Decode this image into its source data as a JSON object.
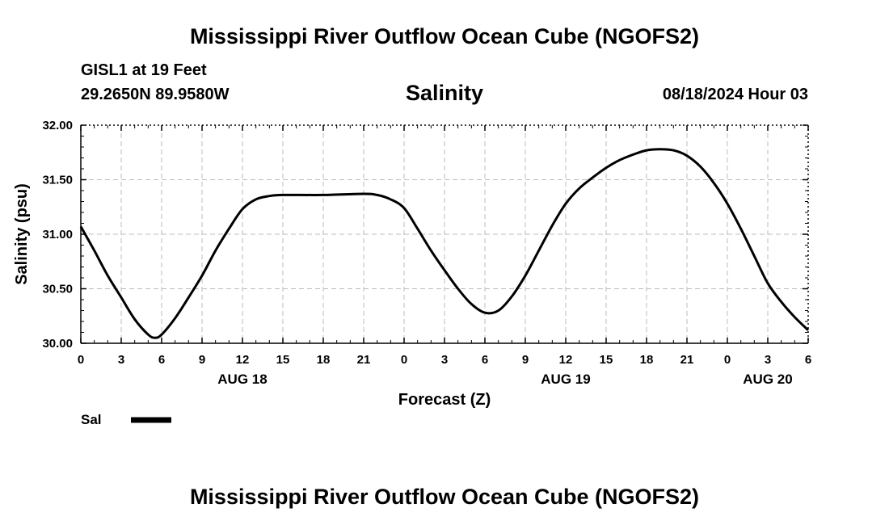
{
  "header": {
    "title": "Mississippi River Outflow Ocean Cube (NGOFS2)",
    "station": "GISL1 at 19 Feet",
    "coords": "29.2650N  89.9580W",
    "variable": "Salinity",
    "datetime": "08/18/2024 Hour 03"
  },
  "footer": {
    "title": "Mississippi River Outflow Ocean Cube (NGOFS2)"
  },
  "chart_data": {
    "type": "line",
    "title": "Salinity",
    "xlabel": "Forecast (Z)",
    "ylabel": "Salinity (psu)",
    "ylim": [
      30.0,
      32.0
    ],
    "yticks": [
      "30.00",
      "30.50",
      "31.00",
      "31.50",
      "32.00"
    ],
    "xlim": [
      0,
      54
    ],
    "xticks": [
      {
        "h": 0,
        "label": "0"
      },
      {
        "h": 3,
        "label": "3"
      },
      {
        "h": 6,
        "label": "6"
      },
      {
        "h": 9,
        "label": "9"
      },
      {
        "h": 12,
        "label": "12"
      },
      {
        "h": 15,
        "label": "15"
      },
      {
        "h": 18,
        "label": "18"
      },
      {
        "h": 21,
        "label": "21"
      },
      {
        "h": 24,
        "label": "0"
      },
      {
        "h": 27,
        "label": "3"
      },
      {
        "h": 30,
        "label": "6"
      },
      {
        "h": 33,
        "label": "9"
      },
      {
        "h": 36,
        "label": "12"
      },
      {
        "h": 39,
        "label": "15"
      },
      {
        "h": 42,
        "label": "18"
      },
      {
        "h": 45,
        "label": "21"
      },
      {
        "h": 48,
        "label": "0"
      },
      {
        "h": 51,
        "label": "3"
      },
      {
        "h": 54,
        "label": "6"
      }
    ],
    "day_labels": [
      {
        "h": 12,
        "label": "AUG 18"
      },
      {
        "h": 36,
        "label": "AUG 19"
      },
      {
        "h": 51,
        "label": "AUG 20"
      }
    ],
    "grid": true,
    "legend": "bottom-left",
    "series": [
      {
        "name": "Sal",
        "x": [
          0,
          1,
          2,
          3,
          4,
          5,
          5.5,
          6,
          7,
          8,
          9,
          10,
          11,
          12,
          13,
          14,
          15,
          18,
          21,
          22,
          23,
          24,
          25,
          26,
          27,
          28,
          29,
          30,
          31,
          32,
          33,
          34,
          35,
          36,
          37,
          38,
          39,
          40,
          41,
          42,
          43,
          44,
          45,
          46,
          47,
          48,
          49,
          50,
          51,
          52,
          53,
          54
        ],
        "values": [
          31.07,
          30.85,
          30.62,
          30.42,
          30.22,
          30.08,
          30.05,
          30.08,
          30.23,
          30.42,
          30.62,
          30.85,
          31.05,
          31.23,
          31.32,
          31.35,
          31.36,
          31.36,
          31.37,
          31.36,
          31.32,
          31.24,
          31.05,
          30.85,
          30.67,
          30.5,
          30.36,
          30.28,
          30.3,
          30.43,
          30.62,
          30.85,
          31.08,
          31.28,
          31.42,
          31.52,
          31.61,
          31.68,
          31.73,
          31.77,
          31.78,
          31.77,
          31.72,
          31.62,
          31.47,
          31.28,
          31.05,
          30.8,
          30.55,
          30.38,
          30.24,
          30.12
        ]
      }
    ]
  }
}
